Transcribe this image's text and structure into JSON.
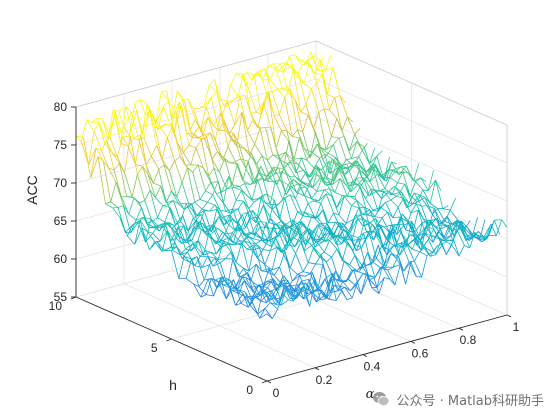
{
  "chart_data": {
    "type": "surface",
    "title": "",
    "xlabel": "α",
    "ylabel": "h",
    "zlabel": "ACC",
    "xlim": [
      0,
      1
    ],
    "ylim": [
      0,
      10
    ],
    "zlim": [
      55,
      80
    ],
    "x_ticks": [
      "0",
      "0.2",
      "0.4",
      "0.6",
      "0.8",
      "1"
    ],
    "y_ticks": [
      "0",
      "5",
      "10"
    ],
    "z_ticks": [
      "55",
      "60",
      "65",
      "70",
      "75",
      "80"
    ],
    "grid": true,
    "colormap": "parula",
    "edge_only": true,
    "z_profile_over_h": {
      "h": [
        0,
        1,
        2,
        3,
        4,
        5,
        6,
        7,
        8,
        9,
        10
      ],
      "acc": [
        63.5,
        63.5,
        63.8,
        64.5,
        65.0,
        65.5,
        66.0,
        66.5,
        68.0,
        74.0,
        76.0
      ]
    },
    "z_trend_over_alpha": [
      {
        "h": 0,
        "acc_at_alpha0": 61.5,
        "acc_at_alpha1": 64.5
      },
      {
        "h": 10,
        "acc_at_alpha0": 73.5,
        "acc_at_alpha1": 77.0
      }
    ],
    "noise_amplitude": 3.5
  },
  "watermark": {
    "icon": "wechat-icon",
    "text": "公众号 · Matlab科研助手"
  },
  "colors": {
    "axis": "#262626",
    "grid": "#e6e6e6",
    "parula": [
      "#3e26a8",
      "#4743f8",
      "#2f73f3",
      "#1b97dd",
      "#07b8c1",
      "#3bc68e",
      "#95c650",
      "#e6bd3a",
      "#fbdf26",
      "#f9fb0e"
    ]
  }
}
